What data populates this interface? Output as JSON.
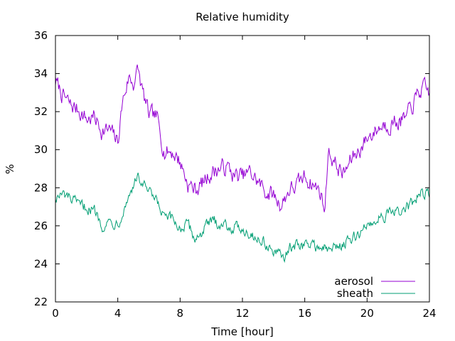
{
  "chart_data": {
    "type": "line",
    "title": "Relative humidity",
    "xlabel": "Time [hour]",
    "ylabel": "%",
    "xlim": [
      0,
      24
    ],
    "ylim": [
      22,
      36
    ],
    "xticks": [
      0,
      4,
      8,
      12,
      16,
      20,
      24
    ],
    "yticks": [
      22,
      24,
      26,
      28,
      30,
      32,
      34,
      36
    ],
    "grid": false,
    "legend_position": "bottom-right",
    "series": [
      {
        "name": "aerosol",
        "color": "#9400d3",
        "x": [
          0,
          0.5,
          1,
          1.5,
          2,
          2.5,
          3,
          3.5,
          4,
          4.3,
          4.7,
          5,
          5.3,
          5.6,
          6,
          6.5,
          7,
          7.5,
          8,
          8.5,
          9,
          9.5,
          10,
          10.5,
          11,
          11.5,
          12,
          12.5,
          13,
          13.5,
          14,
          14.5,
          15,
          15.5,
          16,
          16.5,
          17,
          17.3,
          17.5,
          18,
          18.5,
          19,
          19.5,
          20,
          20.5,
          21,
          21.5,
          22,
          22.5,
          23,
          23.5,
          24
        ],
        "y": [
          33.6,
          32.8,
          32.3,
          32.1,
          31.6,
          31.7,
          31.0,
          31.0,
          30.4,
          32.5,
          33.8,
          33.5,
          34.2,
          33.0,
          31.8,
          31.7,
          29.9,
          29.9,
          29.4,
          28.2,
          27.9,
          28.3,
          28.8,
          29.0,
          29.1,
          28.6,
          28.6,
          28.8,
          28.3,
          27.8,
          27.6,
          27.1,
          27.9,
          28.1,
          28.6,
          28.2,
          27.8,
          26.8,
          30.0,
          29.2,
          28.7,
          29.5,
          30.0,
          30.6,
          31.0,
          31.3,
          31.4,
          31.5,
          31.6,
          32.5,
          33.2,
          33.0
        ]
      },
      {
        "name": "sheath",
        "color": "#009e73",
        "x": [
          0,
          0.5,
          1,
          1.5,
          2,
          2.5,
          3,
          3.5,
          4,
          4.5,
          5,
          5.3,
          5.6,
          6,
          6.5,
          7,
          7.5,
          8,
          8.5,
          9,
          9.5,
          10,
          10.5,
          11,
          11.5,
          12,
          12.5,
          13,
          13.5,
          14,
          14.5,
          15,
          15.5,
          16,
          16.5,
          17,
          17.5,
          18,
          18.5,
          19,
          19.5,
          20,
          20.5,
          21,
          21.5,
          22,
          22.5,
          23,
          23.5,
          24
        ],
        "y": [
          27.5,
          27.6,
          27.4,
          27.0,
          27.0,
          26.8,
          26.1,
          26.2,
          26.2,
          27.1,
          28.2,
          28.5,
          28.2,
          27.7,
          27.2,
          26.4,
          26.3,
          25.9,
          26.0,
          25.3,
          25.8,
          26.2,
          26.2,
          26.0,
          25.9,
          25.9,
          25.6,
          25.3,
          25.1,
          24.6,
          24.3,
          24.7,
          25.0,
          25.0,
          25.0,
          24.9,
          24.7,
          24.9,
          25.1,
          25.2,
          25.6,
          26.0,
          26.3,
          26.6,
          26.6,
          26.7,
          26.9,
          27.2,
          27.8,
          27.6
        ]
      }
    ]
  }
}
